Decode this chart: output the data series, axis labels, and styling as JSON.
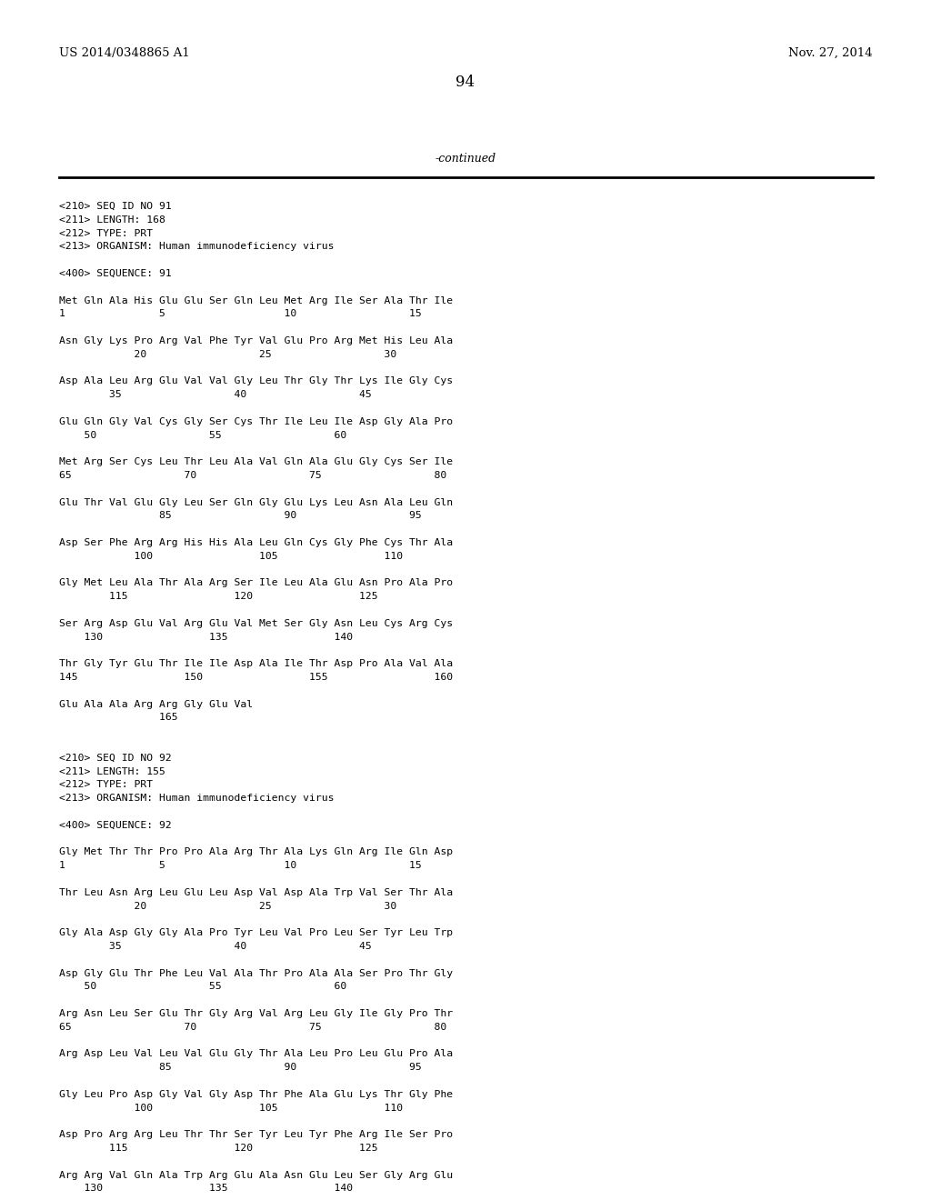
{
  "bg_color": "#ffffff",
  "header_left": "US 2014/0348865 A1",
  "header_right": "Nov. 27, 2014",
  "page_number": "94",
  "continued_text": "-continued",
  "content": [
    "<210> SEQ ID NO 91",
    "<211> LENGTH: 168",
    "<212> TYPE: PRT",
    "<213> ORGANISM: Human immunodeficiency virus",
    "",
    "<400> SEQUENCE: 91",
    "",
    "Met Gln Ala His Glu Glu Ser Gln Leu Met Arg Ile Ser Ala Thr Ile",
    "1               5                   10                  15",
    "",
    "Asn Gly Lys Pro Arg Val Phe Tyr Val Glu Pro Arg Met His Leu Ala",
    "            20                  25                  30",
    "",
    "Asp Ala Leu Arg Glu Val Val Gly Leu Thr Gly Thr Lys Ile Gly Cys",
    "        35                  40                  45",
    "",
    "Glu Gln Gly Val Cys Gly Ser Cys Thr Ile Leu Ile Asp Gly Ala Pro",
    "    50                  55                  60",
    "",
    "Met Arg Ser Cys Leu Thr Leu Ala Val Gln Ala Glu Gly Cys Ser Ile",
    "65                  70                  75                  80",
    "",
    "Glu Thr Val Glu Gly Leu Ser Gln Gly Glu Lys Leu Asn Ala Leu Gln",
    "                85                  90                  95",
    "",
    "Asp Ser Phe Arg Arg His His Ala Leu Gln Cys Gly Phe Cys Thr Ala",
    "            100                 105                 110",
    "",
    "Gly Met Leu Ala Thr Ala Arg Ser Ile Leu Ala Glu Asn Pro Ala Pro",
    "        115                 120                 125",
    "",
    "Ser Arg Asp Glu Val Arg Glu Val Met Ser Gly Asn Leu Cys Arg Cys",
    "    130                 135                 140",
    "",
    "Thr Gly Tyr Glu Thr Ile Ile Asp Ala Ile Thr Asp Pro Ala Val Ala",
    "145                 150                 155                 160",
    "",
    "Glu Ala Ala Arg Arg Gly Glu Val",
    "                165",
    "",
    "",
    "<210> SEQ ID NO 92",
    "<211> LENGTH: 155",
    "<212> TYPE: PRT",
    "<213> ORGANISM: Human immunodeficiency virus",
    "",
    "<400> SEQUENCE: 92",
    "",
    "Gly Met Thr Thr Pro Pro Ala Arg Thr Ala Lys Gln Arg Ile Gln Asp",
    "1               5                   10                  15",
    "",
    "Thr Leu Asn Arg Leu Glu Leu Asp Val Asp Ala Trp Val Ser Thr Ala",
    "            20                  25                  30",
    "",
    "Gly Ala Asp Gly Gly Ala Pro Tyr Leu Val Pro Leu Ser Tyr Leu Trp",
    "        35                  40                  45",
    "",
    "Asp Gly Glu Thr Phe Leu Val Ala Thr Pro Ala Ala Ser Pro Thr Gly",
    "    50                  55                  60",
    "",
    "Arg Asn Leu Ser Glu Thr Gly Arg Val Arg Leu Gly Ile Gly Pro Thr",
    "65                  70                  75                  80",
    "",
    "Arg Asp Leu Val Leu Val Glu Gly Thr Ala Leu Pro Leu Glu Pro Ala",
    "                85                  90                  95",
    "",
    "Gly Leu Pro Asp Gly Val Gly Asp Thr Phe Ala Glu Lys Thr Gly Phe",
    "            100                 105                 110",
    "",
    "Asp Pro Arg Arg Leu Thr Thr Ser Tyr Leu Tyr Phe Arg Ile Ser Pro",
    "        115                 120                 125",
    "",
    "Arg Arg Val Gln Ala Trp Arg Glu Ala Asn Glu Leu Ser Gly Arg Glu",
    "    130                 135                 140"
  ]
}
